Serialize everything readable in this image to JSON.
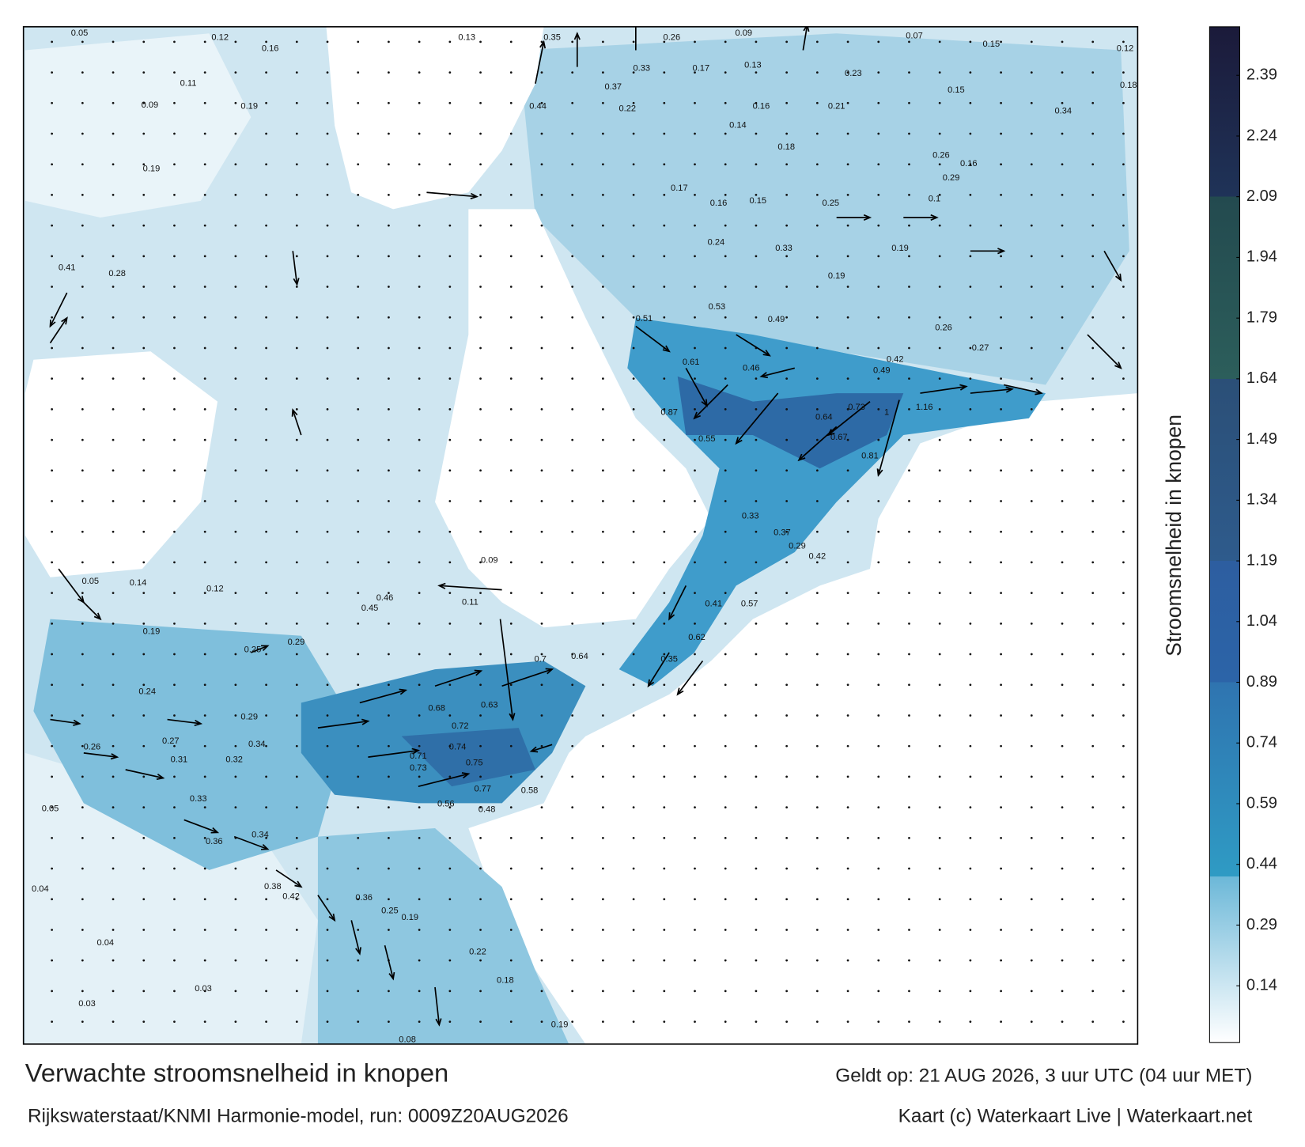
{
  "title": "Verwachte stroomsnelheid in knopen",
  "subtitle": "Rijkswaterstaat/KNMI Harmonie-model, run: 0009Z20AUG2026",
  "valid_time": "Geldt op: 21 AUG 2026, 3 uur UTC (04 uur MET)",
  "credit": "Kaart (c) Waterkaart Live | Waterkaart.net",
  "colorbar": {
    "label": "Stroomsnelheid in knopen",
    "clim": [
      0,
      2.51
    ],
    "ticks": [
      0.14,
      0.29,
      0.44,
      0.59,
      0.74,
      0.89,
      1.04,
      1.19,
      1.34,
      1.49,
      1.64,
      1.79,
      1.94,
      2.09,
      2.24,
      2.39
    ],
    "colorscale": [
      {
        "value": 0,
        "color": "#ffffff"
      },
      {
        "value": 0.2,
        "color": "#b7dcec"
      },
      {
        "value": 0.41,
        "color": "#6cb8d8"
      },
      {
        "value": 0.41,
        "color": "#2f9bc4"
      },
      {
        "value": 0.89,
        "color": "#2f74b0"
      },
      {
        "value": 0.89,
        "color": "#2c64a8"
      },
      {
        "value": 1.19,
        "color": "#2d5ea0"
      },
      {
        "value": 1.19,
        "color": "#2e5b8c"
      },
      {
        "value": 1.64,
        "color": "#2b4f77"
      },
      {
        "value": 1.64,
        "color": "#2c5e5b"
      },
      {
        "value": 2.09,
        "color": "#234a4f"
      },
      {
        "value": 2.09,
        "color": "#1f3358"
      },
      {
        "value": 2.51,
        "color": "#1b1a3a"
      }
    ]
  },
  "speed_labels": [
    0.05,
    0.12,
    0.16,
    0.13,
    0.35,
    0.26,
    0.09,
    0.07,
    0.15,
    0.12,
    0.11,
    0.09,
    0.19,
    0.33,
    0.17,
    0.13,
    0.23,
    0.15,
    0.18,
    0.44,
    0.37,
    0.22,
    0.16,
    0.21,
    0.34,
    0.19,
    0.14,
    0.18,
    0.26,
    0.29,
    0.16,
    0.17,
    0.16,
    0.15,
    0.25,
    0.1,
    0.41,
    0.28,
    0.24,
    0.33,
    0.19,
    0.19,
    0.51,
    0.53,
    0.49,
    0.26,
    0.27,
    0.61,
    0.46,
    0.42,
    0.49,
    0.73,
    1.16,
    1,
    0.64,
    0.87,
    0.55,
    0.67,
    0.81,
    0.33,
    0.37,
    0.29,
    0.42,
    0.46,
    0.45,
    0.11,
    0.09,
    0.41,
    0.57,
    0.62,
    0.35,
    0.72,
    0.68,
    0.63,
    0.7,
    0.64,
    0.74,
    0.75,
    0.73,
    0.71,
    0.77,
    0.58,
    0.48,
    0.56,
    0.26,
    0.27,
    0.31,
    0.32,
    0.34,
    0.24,
    0.29,
    0.33,
    0.36,
    0.34,
    0.38,
    0.42,
    0.36,
    0.25,
    0.19,
    0.22,
    0.18,
    0.19,
    0.08,
    0.04,
    0.03,
    0.03,
    0.04,
    0.05,
    0.05,
    0.14,
    0.12,
    0.19,
    0.25,
    0.29
  ]
}
